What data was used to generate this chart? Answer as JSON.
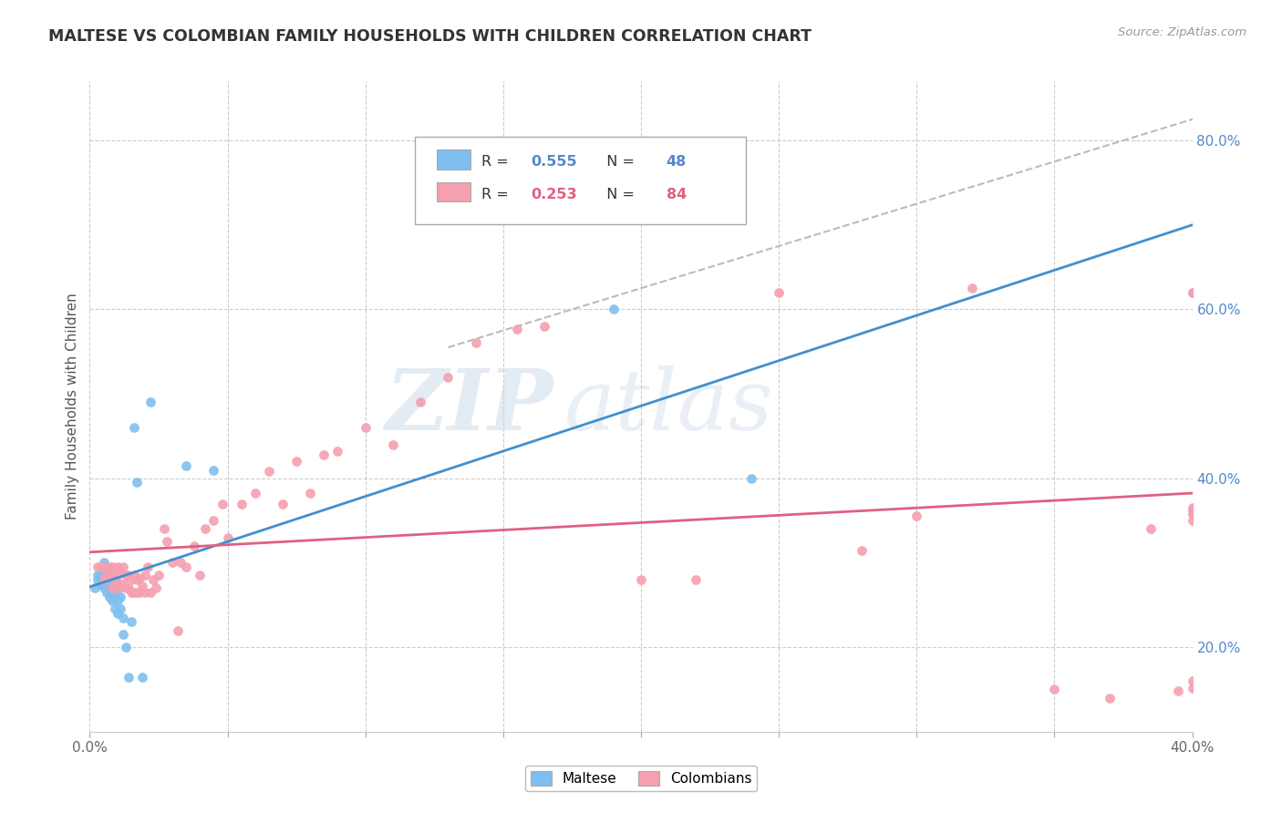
{
  "title": "MALTESE VS COLOMBIAN FAMILY HOUSEHOLDS WITH CHILDREN CORRELATION CHART",
  "source": "Source: ZipAtlas.com",
  "ylabel": "Family Households with Children",
  "xlabel": "",
  "xlim": [
    0.0,
    0.4
  ],
  "ylim": [
    0.1,
    0.87
  ],
  "right_yticks": [
    0.2,
    0.4,
    0.6,
    0.8
  ],
  "right_yticklabels": [
    "20.0%",
    "40.0%",
    "60.0%",
    "80.0%"
  ],
  "xticks": [
    0.0,
    0.05,
    0.1,
    0.15,
    0.2,
    0.25,
    0.3,
    0.35,
    0.4
  ],
  "xticklabels": [
    "0.0%",
    "",
    "",
    "",
    "",
    "",
    "",
    "",
    "40.0%"
  ],
  "maltese_color": "#7fbfef",
  "colombian_color": "#f4a0b0",
  "maltese_line_color": "#4090d0",
  "colombian_line_color": "#e06080",
  "dashed_line_color": "#bbbbbb",
  "watermark_zip": "ZIP",
  "watermark_atlas": "atlas",
  "maltese_x": [
    0.002,
    0.003,
    0.003,
    0.004,
    0.004,
    0.004,
    0.004,
    0.005,
    0.005,
    0.005,
    0.005,
    0.005,
    0.005,
    0.005,
    0.006,
    0.006,
    0.006,
    0.006,
    0.006,
    0.007,
    0.007,
    0.007,
    0.007,
    0.008,
    0.008,
    0.008,
    0.008,
    0.009,
    0.009,
    0.009,
    0.01,
    0.01,
    0.01,
    0.011,
    0.011,
    0.012,
    0.012,
    0.013,
    0.014,
    0.015,
    0.016,
    0.017,
    0.019,
    0.022,
    0.035,
    0.045,
    0.19,
    0.24
  ],
  "maltese_y": [
    0.27,
    0.28,
    0.285,
    0.275,
    0.28,
    0.285,
    0.29,
    0.27,
    0.275,
    0.28,
    0.285,
    0.29,
    0.295,
    0.3,
    0.265,
    0.275,
    0.28,
    0.285,
    0.295,
    0.26,
    0.27,
    0.278,
    0.29,
    0.255,
    0.265,
    0.275,
    0.285,
    0.245,
    0.26,
    0.28,
    0.24,
    0.255,
    0.268,
    0.245,
    0.26,
    0.215,
    0.235,
    0.2,
    0.165,
    0.23,
    0.46,
    0.395,
    0.165,
    0.49,
    0.415,
    0.41,
    0.6,
    0.4
  ],
  "colombian_x": [
    0.003,
    0.004,
    0.005,
    0.005,
    0.006,
    0.007,
    0.007,
    0.008,
    0.008,
    0.008,
    0.009,
    0.009,
    0.01,
    0.01,
    0.01,
    0.011,
    0.011,
    0.012,
    0.012,
    0.013,
    0.013,
    0.014,
    0.014,
    0.015,
    0.015,
    0.016,
    0.016,
    0.017,
    0.017,
    0.018,
    0.018,
    0.019,
    0.02,
    0.02,
    0.021,
    0.022,
    0.023,
    0.024,
    0.025,
    0.027,
    0.028,
    0.03,
    0.032,
    0.033,
    0.035,
    0.038,
    0.04,
    0.042,
    0.045,
    0.048,
    0.05,
    0.055,
    0.06,
    0.065,
    0.07,
    0.075,
    0.08,
    0.085,
    0.09,
    0.1,
    0.11,
    0.12,
    0.13,
    0.14,
    0.155,
    0.165,
    0.2,
    0.22,
    0.25,
    0.28,
    0.3,
    0.32,
    0.35,
    0.37,
    0.385,
    0.395,
    0.4,
    0.4,
    0.4,
    0.4,
    0.4,
    0.4,
    0.4,
    0.4
  ],
  "colombian_y": [
    0.295,
    0.295,
    0.28,
    0.295,
    0.285,
    0.285,
    0.295,
    0.27,
    0.285,
    0.295,
    0.28,
    0.29,
    0.27,
    0.285,
    0.295,
    0.275,
    0.29,
    0.275,
    0.295,
    0.27,
    0.285,
    0.27,
    0.285,
    0.265,
    0.28,
    0.265,
    0.285,
    0.265,
    0.28,
    0.265,
    0.282,
    0.272,
    0.265,
    0.285,
    0.295,
    0.265,
    0.28,
    0.27,
    0.285,
    0.34,
    0.325,
    0.3,
    0.22,
    0.3,
    0.295,
    0.32,
    0.285,
    0.34,
    0.35,
    0.37,
    0.33,
    0.37,
    0.382,
    0.408,
    0.37,
    0.42,
    0.382,
    0.428,
    0.432,
    0.46,
    0.44,
    0.49,
    0.52,
    0.56,
    0.577,
    0.58,
    0.28,
    0.28,
    0.62,
    0.315,
    0.355,
    0.625,
    0.15,
    0.14,
    0.34,
    0.148,
    0.35,
    0.62,
    0.152,
    0.16,
    0.365,
    0.362,
    0.62,
    0.358
  ]
}
